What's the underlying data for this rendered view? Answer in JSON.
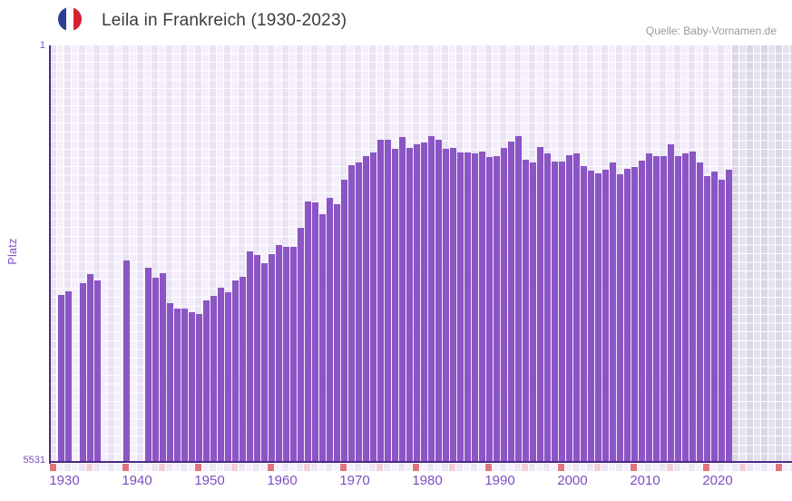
{
  "header": {
    "title": "Leila in Frankreich (1930-2023)",
    "source": "Quelle: Baby-Vornamen.de",
    "flag_icon": "french-flag"
  },
  "chart_data": {
    "type": "bar",
    "title": "Leila in Frankreich (1930-2023)",
    "ylabel": "Platz",
    "y_axis": {
      "top_label": "1",
      "bottom_label": "5531",
      "min": 1,
      "max": 5531,
      "inverted": true,
      "note": "rank 1 = top of chart, bars rise from bottom (rank 5531)"
    },
    "x_axis": {
      "start_year": 1930,
      "end_year": 2023,
      "plot_extends_to_year": 2031,
      "decade_labels": [
        "1930",
        "1940",
        "1950",
        "1960",
        "1970",
        "1980",
        "1990",
        "2000",
        "2010",
        "2020"
      ]
    },
    "start_year": 1930,
    "ranks_by_year": [
      null,
      3310,
      3270,
      null,
      3160,
      3040,
      3120,
      null,
      null,
      null,
      2860,
      null,
      null,
      2950,
      3090,
      3030,
      3420,
      3500,
      3490,
      3540,
      3570,
      3390,
      3330,
      3220,
      3280,
      3120,
      3070,
      2730,
      2780,
      2890,
      2770,
      2650,
      2670,
      2680,
      2420,
      2070,
      2080,
      2240,
      2030,
      2110,
      1790,
      1590,
      1550,
      1470,
      1420,
      1250,
      1250,
      1370,
      1220,
      1360,
      1320,
      1290,
      1200,
      1250,
      1370,
      1360,
      1420,
      1420,
      1430,
      1410,
      1480,
      1470,
      1360,
      1280,
      1200,
      1520,
      1550,
      1350,
      1430,
      1540,
      1540,
      1460,
      1440,
      1600,
      1660,
      1700,
      1650,
      1560,
      1710,
      1640,
      1610,
      1530,
      1430,
      1470,
      1470,
      1310,
      1470,
      1440,
      1410,
      1550,
      1730,
      1680,
      1790,
      1650
    ],
    "colors": {
      "bar": "#8b55c5",
      "axis": "#4b2a85",
      "axis_label": "#7c4ec0",
      "tick_decade": "#e2737c",
      "tick_half_decade": "#f2cdd8",
      "tick_default_light": "#f5f1fa",
      "tick_default_dark": "#ebe5f4",
      "title_text": "#3c3c3c",
      "source_text": "#999999",
      "flag_blue": "#2d3f92",
      "flag_red": "#d6202f"
    },
    "legend": "none",
    "grid": "plaid lavender background with white gridlines; grey-lavender region after last data year"
  }
}
